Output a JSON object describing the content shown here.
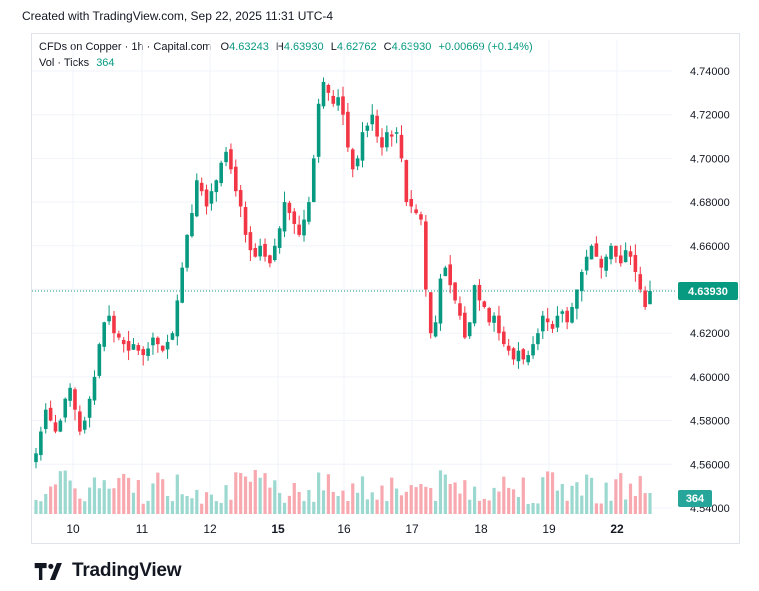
{
  "header": {
    "created": "Created with TradingView.com, Sep 22, 2025 11:31 UTC-4"
  },
  "legend": {
    "symbol": "CFDs on Copper",
    "interval": "1h",
    "source": "Capital.com",
    "open_label": "O",
    "open": "4.63243",
    "high_label": "H",
    "high": "4.63930",
    "low_label": "L",
    "low": "4.62762",
    "close_label": "C",
    "close": "4.63930",
    "change": "+0.00669 (+0.14%)",
    "vol_label": "Vol · Ticks",
    "vol_value": "364"
  },
  "colors": {
    "up": "#089981",
    "down": "#f23645",
    "vol_up": "#9bd8cf",
    "vol_down": "#f7a9af",
    "grid": "#f0f3fa",
    "price_line": "#089981"
  },
  "price_badge": "4.63930",
  "volume_badge": "364",
  "logo": {
    "text": "TradingView",
    "icon": "tradingview-logo-icon"
  },
  "chart_data": {
    "type": "candlestick",
    "y_ticks": [
      "4.74000",
      "4.72000",
      "4.70000",
      "4.68000",
      "4.66000",
      "4.64000",
      "4.62000",
      "4.60000",
      "4.58000",
      "4.56000",
      "4.54000"
    ],
    "ylim": [
      4.535,
      4.745
    ],
    "x_ticks": [
      {
        "label": "10",
        "bold": false
      },
      {
        "label": "11",
        "bold": false
      },
      {
        "label": "12",
        "bold": false
      },
      {
        "label": "15",
        "bold": true
      },
      {
        "label": "16",
        "bold": false
      },
      {
        "label": "17",
        "bold": false
      },
      {
        "label": "18",
        "bold": false
      },
      {
        "label": "19",
        "bold": false
      },
      {
        "label": "22",
        "bold": true
      }
    ],
    "last_price": 4.6393,
    "close_path": [
      4.565,
      4.575,
      4.585,
      4.58,
      4.575,
      4.58,
      4.59,
      4.595,
      4.585,
      4.575,
      4.58,
      4.59,
      4.6,
      4.615,
      4.625,
      4.628,
      4.62,
      4.618,
      4.615,
      4.612,
      4.615,
      4.612,
      4.61,
      4.613,
      4.618,
      4.615,
      4.612,
      4.616,
      4.62,
      4.635,
      4.65,
      4.665,
      4.675,
      4.69,
      4.685,
      4.678,
      4.685,
      4.69,
      4.698,
      4.703,
      4.695,
      4.685,
      4.678,
      4.665,
      4.658,
      4.655,
      4.66,
      4.655,
      4.652,
      4.66,
      4.668,
      4.68,
      4.675,
      4.67,
      4.665,
      4.672,
      4.68,
      4.7,
      4.725,
      4.735,
      4.73,
      4.725,
      4.728,
      4.72,
      4.705,
      4.695,
      4.7,
      4.712,
      4.715,
      4.72,
      4.71,
      4.705,
      4.712,
      4.71,
      4.712,
      4.7,
      4.68,
      4.678,
      4.675,
      4.672,
      4.64,
      4.62,
      4.625,
      4.645,
      4.65,
      4.642,
      4.635,
      4.628,
      4.618,
      4.625,
      4.642,
      4.635,
      4.632,
      4.625,
      4.628,
      4.62,
      4.615,
      4.612,
      4.608,
      4.612,
      4.608,
      4.61,
      4.615,
      4.62,
      4.628,
      4.625,
      4.622,
      4.628,
      4.63,
      4.625,
      4.632,
      4.64,
      4.648,
      4.655,
      4.66,
      4.655,
      4.65,
      4.655,
      4.66,
      4.655,
      4.652,
      4.658,
      4.655,
      4.648,
      4.64,
      4.632,
      4.6393
    ],
    "volume_max_ticks": 1700
  }
}
